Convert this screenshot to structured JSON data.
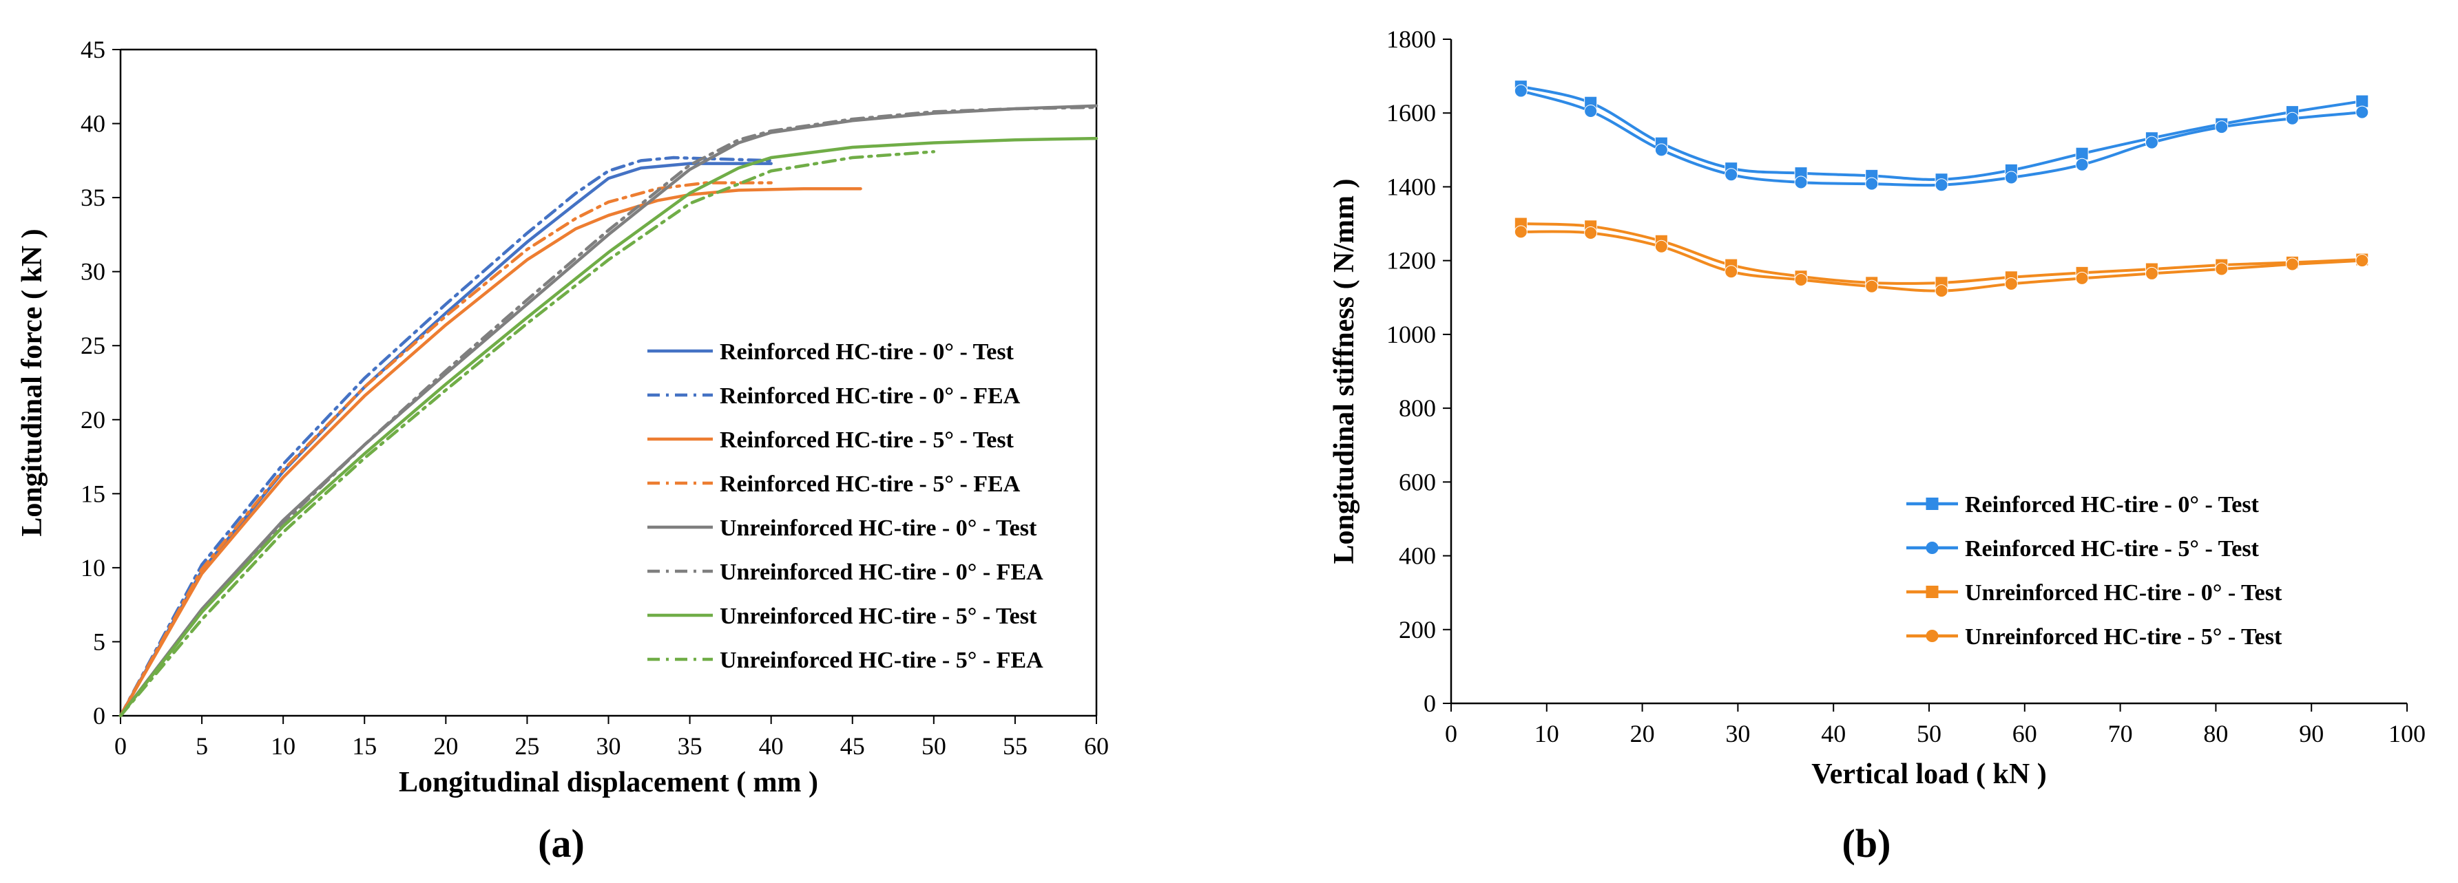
{
  "chart_data": [
    {
      "type": "line",
      "panel_label": "(a)",
      "xlabel": "Longitudinal displacement ( mm )",
      "ylabel": "Longitudinal force ( kN )",
      "xlim": [
        0,
        60
      ],
      "ylim": [
        0,
        45
      ],
      "xticks": [
        0,
        5,
        10,
        15,
        20,
        25,
        30,
        35,
        40,
        45,
        50,
        55,
        60
      ],
      "yticks": [
        0,
        5,
        10,
        15,
        20,
        25,
        30,
        35,
        40,
        45
      ],
      "grid": false,
      "legend_position": "bottom-right",
      "series": [
        {
          "name": "Reinforced HC-tire - 0° - Test",
          "color": "#4472C4",
          "style": "solid",
          "x": [
            0,
            5,
            10,
            15,
            20,
            25,
            28,
            30,
            32,
            35,
            38,
            40
          ],
          "y": [
            0,
            9.8,
            16.5,
            22.2,
            27.2,
            32.0,
            34.6,
            36.3,
            37.0,
            37.3,
            37.3,
            37.3
          ]
        },
        {
          "name": "Reinforced HC-tire - 0° - FEA",
          "color": "#4472C4",
          "style": "dashdot",
          "x": [
            0,
            5,
            10,
            15,
            20,
            25,
            28,
            30,
            32,
            34,
            37,
            40
          ],
          "y": [
            0,
            10.2,
            17.0,
            22.8,
            27.8,
            32.6,
            35.3,
            36.8,
            37.5,
            37.7,
            37.6,
            37.5
          ]
        },
        {
          "name": "Reinforced HC-tire - 5° - Test",
          "color": "#ED7D31",
          "style": "solid",
          "x": [
            0,
            5,
            10,
            15,
            20,
            25,
            28,
            30,
            33,
            35,
            38,
            42,
            45.5
          ],
          "y": [
            0,
            9.6,
            16.1,
            21.6,
            26.4,
            30.8,
            32.9,
            33.8,
            34.8,
            35.2,
            35.5,
            35.6,
            35.6
          ]
        },
        {
          "name": "Reinforced HC-tire - 5° - FEA",
          "color": "#ED7D31",
          "style": "dashdot",
          "x": [
            0,
            5,
            10,
            15,
            20,
            25,
            28,
            30,
            33,
            36,
            40
          ],
          "y": [
            0,
            9.9,
            16.6,
            22.2,
            27.0,
            31.5,
            33.6,
            34.7,
            35.6,
            36.0,
            36.0
          ]
        },
        {
          "name": "Unreinforced HC-tire - 0° - Test",
          "color": "#7F7F7F",
          "style": "solid",
          "x": [
            0,
            5,
            10,
            15,
            20,
            25,
            30,
            35,
            38,
            40,
            45,
            50,
            55,
            60
          ],
          "y": [
            0,
            7.2,
            13.2,
            18.3,
            23.1,
            27.8,
            32.5,
            36.9,
            38.7,
            39.4,
            40.2,
            40.7,
            41.0,
            41.2
          ]
        },
        {
          "name": "Unreinforced HC-tire - 0° - FEA",
          "color": "#7F7F7F",
          "style": "dashdot",
          "x": [
            0,
            5,
            10,
            15,
            20,
            25,
            30,
            35,
            38,
            40,
            45,
            50,
            55,
            60
          ],
          "y": [
            0,
            7.0,
            13.0,
            18.3,
            23.3,
            28.1,
            32.8,
            37.2,
            38.9,
            39.5,
            40.3,
            40.8,
            41.0,
            41.1
          ]
        },
        {
          "name": "Unreinforced HC-tire - 5° - Test",
          "color": "#70AD47",
          "style": "solid",
          "x": [
            0,
            5,
            10,
            15,
            20,
            25,
            30,
            35,
            38,
            40,
            45,
            50,
            55,
            60
          ],
          "y": [
            0,
            7.0,
            12.8,
            17.7,
            22.4,
            26.9,
            31.3,
            35.3,
            37.0,
            37.7,
            38.4,
            38.7,
            38.9,
            39.0
          ]
        },
        {
          "name": "Unreinforced HC-tire - 5° - FEA",
          "color": "#70AD47",
          "style": "dashdot",
          "x": [
            0,
            5,
            10,
            15,
            20,
            25,
            30,
            35,
            40,
            45,
            50
          ],
          "y": [
            0,
            6.5,
            12.4,
            17.4,
            22.0,
            26.5,
            30.8,
            34.6,
            36.8,
            37.7,
            38.1
          ]
        }
      ]
    },
    {
      "type": "line",
      "panel_label": "(b)",
      "xlabel": "Vertical load ( kN )",
      "ylabel": "Longitudinal stiffness ( N/mm )",
      "xlim": [
        0,
        100
      ],
      "ylim": [
        0,
        1800
      ],
      "xticks": [
        0,
        10,
        20,
        30,
        40,
        50,
        60,
        70,
        80,
        90,
        100
      ],
      "yticks": [
        0,
        200,
        400,
        600,
        800,
        1000,
        1200,
        1400,
        1600,
        1800
      ],
      "grid": false,
      "legend_position": "bottom-right",
      "series": [
        {
          "name": "Reinforced HC-tire - 0° - Test",
          "color": "#2E8AE6",
          "marker": "square",
          "x": [
            7.3,
            14.6,
            22,
            29.3,
            36.6,
            44,
            51.3,
            58.6,
            66,
            73.3,
            80.6,
            88,
            95.3
          ],
          "y": [
            1672,
            1628,
            1518,
            1450,
            1437,
            1430,
            1420,
            1445,
            1490,
            1532,
            1570,
            1603,
            1632
          ]
        },
        {
          "name": "Reinforced HC-tire - 5° - Test",
          "color": "#2E8AE6",
          "marker": "circle",
          "x": [
            7.3,
            14.6,
            22,
            29.3,
            36.6,
            44,
            51.3,
            58.6,
            66,
            73.3,
            80.6,
            88,
            95.3
          ],
          "y": [
            1660,
            1605,
            1500,
            1433,
            1412,
            1408,
            1405,
            1425,
            1460,
            1520,
            1562,
            1585,
            1602
          ]
        },
        {
          "name": "Unreinforced HC-tire - 0° - Test",
          "color": "#F28A1E",
          "marker": "square",
          "x": [
            7.3,
            14.6,
            22,
            29.3,
            36.6,
            44,
            51.3,
            58.6,
            66,
            73.3,
            80.6,
            88,
            95.3
          ],
          "y": [
            1300,
            1293,
            1253,
            1188,
            1157,
            1140,
            1140,
            1155,
            1167,
            1177,
            1188,
            1195,
            1203
          ]
        },
        {
          "name": "Unreinforced HC-tire - 5° - Test",
          "color": "#F28A1E",
          "marker": "circle",
          "x": [
            7.3,
            14.6,
            22,
            29.3,
            36.6,
            44,
            51.3,
            58.6,
            66,
            73.3,
            80.6,
            88,
            95.3
          ],
          "y": [
            1278,
            1275,
            1238,
            1170,
            1148,
            1130,
            1118,
            1137,
            1152,
            1165,
            1177,
            1190,
            1200
          ]
        }
      ]
    }
  ]
}
